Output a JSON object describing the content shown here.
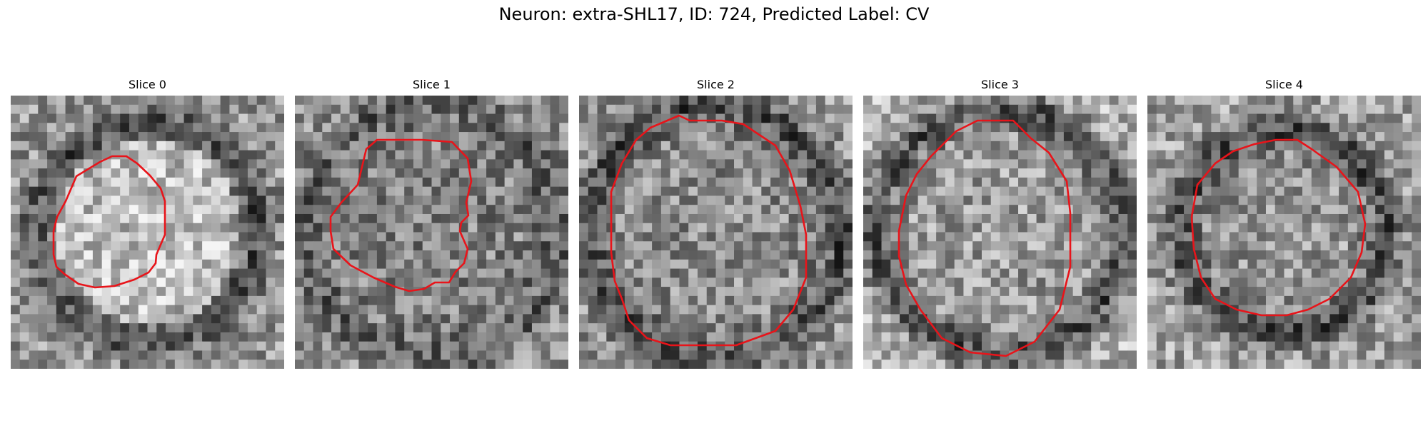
{
  "figure": {
    "title": "Neuron: extra-SHL17, ID: 724, Predicted Label: CV",
    "contour_color": "#e8141a",
    "colormap": "grayscale",
    "panels": [
      {
        "title": "Slice 0",
        "seed": 11,
        "base": 150,
        "ring": 70,
        "ring_r": 0.4,
        "inner": 40
      },
      {
        "title": "Slice 1",
        "seed": 23,
        "base": 150,
        "ring": 55,
        "ring_r": 0.47,
        "inner": -20
      },
      {
        "title": "Slice 2",
        "seed": 37,
        "base": 150,
        "ring": 75,
        "ring_r": 0.46,
        "inner": -10
      },
      {
        "title": "Slice 3",
        "seed": 41,
        "base": 175,
        "ring": 95,
        "ring_r": 0.45,
        "inner": -20
      },
      {
        "title": "Slice 4",
        "seed": 59,
        "base": 160,
        "ring": 85,
        "ring_r": 0.37,
        "inner": -10
      }
    ]
  }
}
